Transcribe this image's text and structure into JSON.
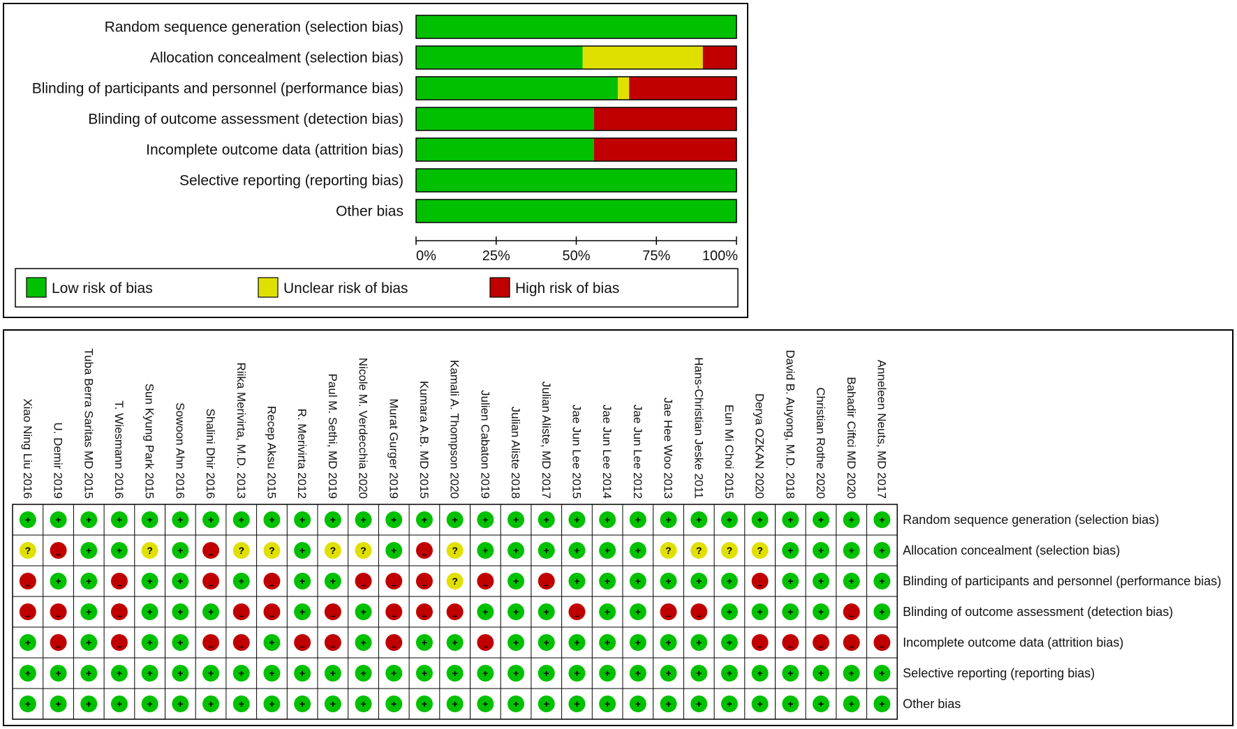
{
  "chart_data": [
    {
      "type": "bar",
      "stacked": true,
      "orientation": "horizontal",
      "title": "",
      "categories": [
        "Random sequence generation (selection bias)",
        "Allocation concealment (selection bias)",
        "Blinding of participants and personnel (performance bias)",
        "Blinding of outcome assessment (detection bias)",
        "Incomplete outcome data (attrition bias)",
        "Selective reporting (reporting bias)",
        "Other bias"
      ],
      "series": [
        {
          "name": "Low risk of bias",
          "color": "#00c000",
          "values": [
            100,
            52,
            63,
            55.5,
            55.5,
            100,
            100
          ]
        },
        {
          "name": "Unclear risk of bias",
          "color": "#e0e000",
          "values": [
            0,
            37.5,
            3.5,
            0,
            0,
            0,
            0
          ]
        },
        {
          "name": "High risk of bias",
          "color": "#c00000",
          "values": [
            0,
            10.5,
            33.5,
            44.5,
            44.5,
            0,
            0
          ]
        }
      ],
      "xlim": [
        0,
        100
      ],
      "xticks": [
        "0%",
        "25%",
        "50%",
        "75%",
        "100%"
      ],
      "xlabel": "",
      "ylabel": "",
      "legend": [
        "Low risk of bias",
        "Unclear risk of bias",
        "High risk of bias"
      ],
      "legend_position": "bottom"
    },
    {
      "type": "table",
      "title": "",
      "studies": [
        "Xiao Ning Liu 2016",
        "U. Demir 2019",
        "Tuba Berra Saritas MD 2015",
        "T. Wiesmann 2016",
        "Sun Kyung Park 2015",
        "Sowoon Ahn 2016",
        "Shalini Dhir 2016",
        "Riika Merivirta, M.D. 2013",
        "Recep Aksu 2015",
        "R. Merivirta 2012",
        "Paul M. Sethi, MD 2019",
        "Nicole M. Verdecchia 2020",
        "Murat Gurger 2019",
        "Kumara A.B. MD 2015",
        "Kamali A. Thompson 2020",
        "Julien Cabaton 2019",
        "Julian Aliste 2018",
        "Julian Aliste, MD 2017",
        "Jae Jun Lee 2015",
        "Jae Jun Lee 2014",
        "Jae Jun Lee 2012",
        "Jae Hee Woo 2013",
        "Hans-Christian Jeske 2011",
        "Eun Mi Choi 2015",
        "Derya OZKAN 2020",
        "David B. Auyong, M.D. 2018",
        "Christian Rothe 2020",
        "Bahadir Ciftci MD 2020",
        "Anneleen Neuts, MD 2017"
      ],
      "domains": [
        "Random sequence generation (selection bias)",
        "Allocation concealment (selection bias)",
        "Blinding of participants and personnel (performance bias)",
        "Blinding of outcome assessment (detection bias)",
        "Incomplete outcome data (attrition bias)",
        "Selective reporting (reporting bias)",
        "Other bias"
      ],
      "symbols": {
        "+": "Low risk of bias",
        "?": "Unclear risk of bias",
        "-": "High risk of bias"
      },
      "symbol_colors": {
        "+": "#00c000",
        "?": "#e0e000",
        "-": "#c00000"
      },
      "ratings": [
        [
          "+",
          "+",
          "+",
          "+",
          "+",
          "+",
          "+",
          "+",
          "+",
          "+",
          "+",
          "+",
          "+",
          "+",
          "+",
          "+",
          "+",
          "+",
          "+",
          "+",
          "+",
          "+",
          "+",
          "+",
          "+",
          "+",
          "+",
          "+",
          "+"
        ],
        [
          "?",
          "-",
          "+",
          "+",
          "?",
          "+",
          "-",
          "?",
          "?",
          "+",
          "?",
          "?",
          "+",
          "-",
          "?",
          "+",
          "+",
          "+",
          "+",
          "+",
          "+",
          "?",
          "?",
          "?",
          "?",
          "+",
          "+",
          "+",
          "+"
        ],
        [
          "-",
          "+",
          "+",
          "-",
          "+",
          "+",
          "-",
          "+",
          "-",
          "+",
          "+",
          "-",
          "-",
          "-",
          "?",
          "-",
          "+",
          "-",
          "+",
          "+",
          "+",
          "+",
          "+",
          "+",
          "-",
          "+",
          "+",
          "+",
          "+"
        ],
        [
          "-",
          "-",
          "+",
          "-",
          "+",
          "+",
          "+",
          "-",
          "-",
          "+",
          "-",
          "+",
          "-",
          "-",
          "-",
          "+",
          "+",
          "+",
          "-",
          "+",
          "+",
          "-",
          "-",
          "+",
          "+",
          "+",
          "+",
          "-",
          "+"
        ],
        [
          "+",
          "-",
          "+",
          "-",
          "+",
          "+",
          "-",
          "-",
          "+",
          "-",
          "-",
          "+",
          "-",
          "+",
          "+",
          "-",
          "+",
          "+",
          "+",
          "+",
          "+",
          "+",
          "+",
          "+",
          "-",
          "-",
          "-",
          "-",
          "-"
        ],
        [
          "+",
          "+",
          "+",
          "+",
          "+",
          "+",
          "+",
          "+",
          "+",
          "+",
          "+",
          "+",
          "+",
          "+",
          "+",
          "+",
          "+",
          "+",
          "+",
          "+",
          "+",
          "+",
          "+",
          "+",
          "+",
          "+",
          "+",
          "+",
          "+"
        ],
        [
          "+",
          "+",
          "+",
          "+",
          "+",
          "+",
          "+",
          "+",
          "+",
          "+",
          "+",
          "+",
          "+",
          "+",
          "+",
          "+",
          "+",
          "+",
          "+",
          "+",
          "+",
          "+",
          "+",
          "+",
          "+",
          "+",
          "+",
          "+",
          "+"
        ]
      ]
    }
  ]
}
